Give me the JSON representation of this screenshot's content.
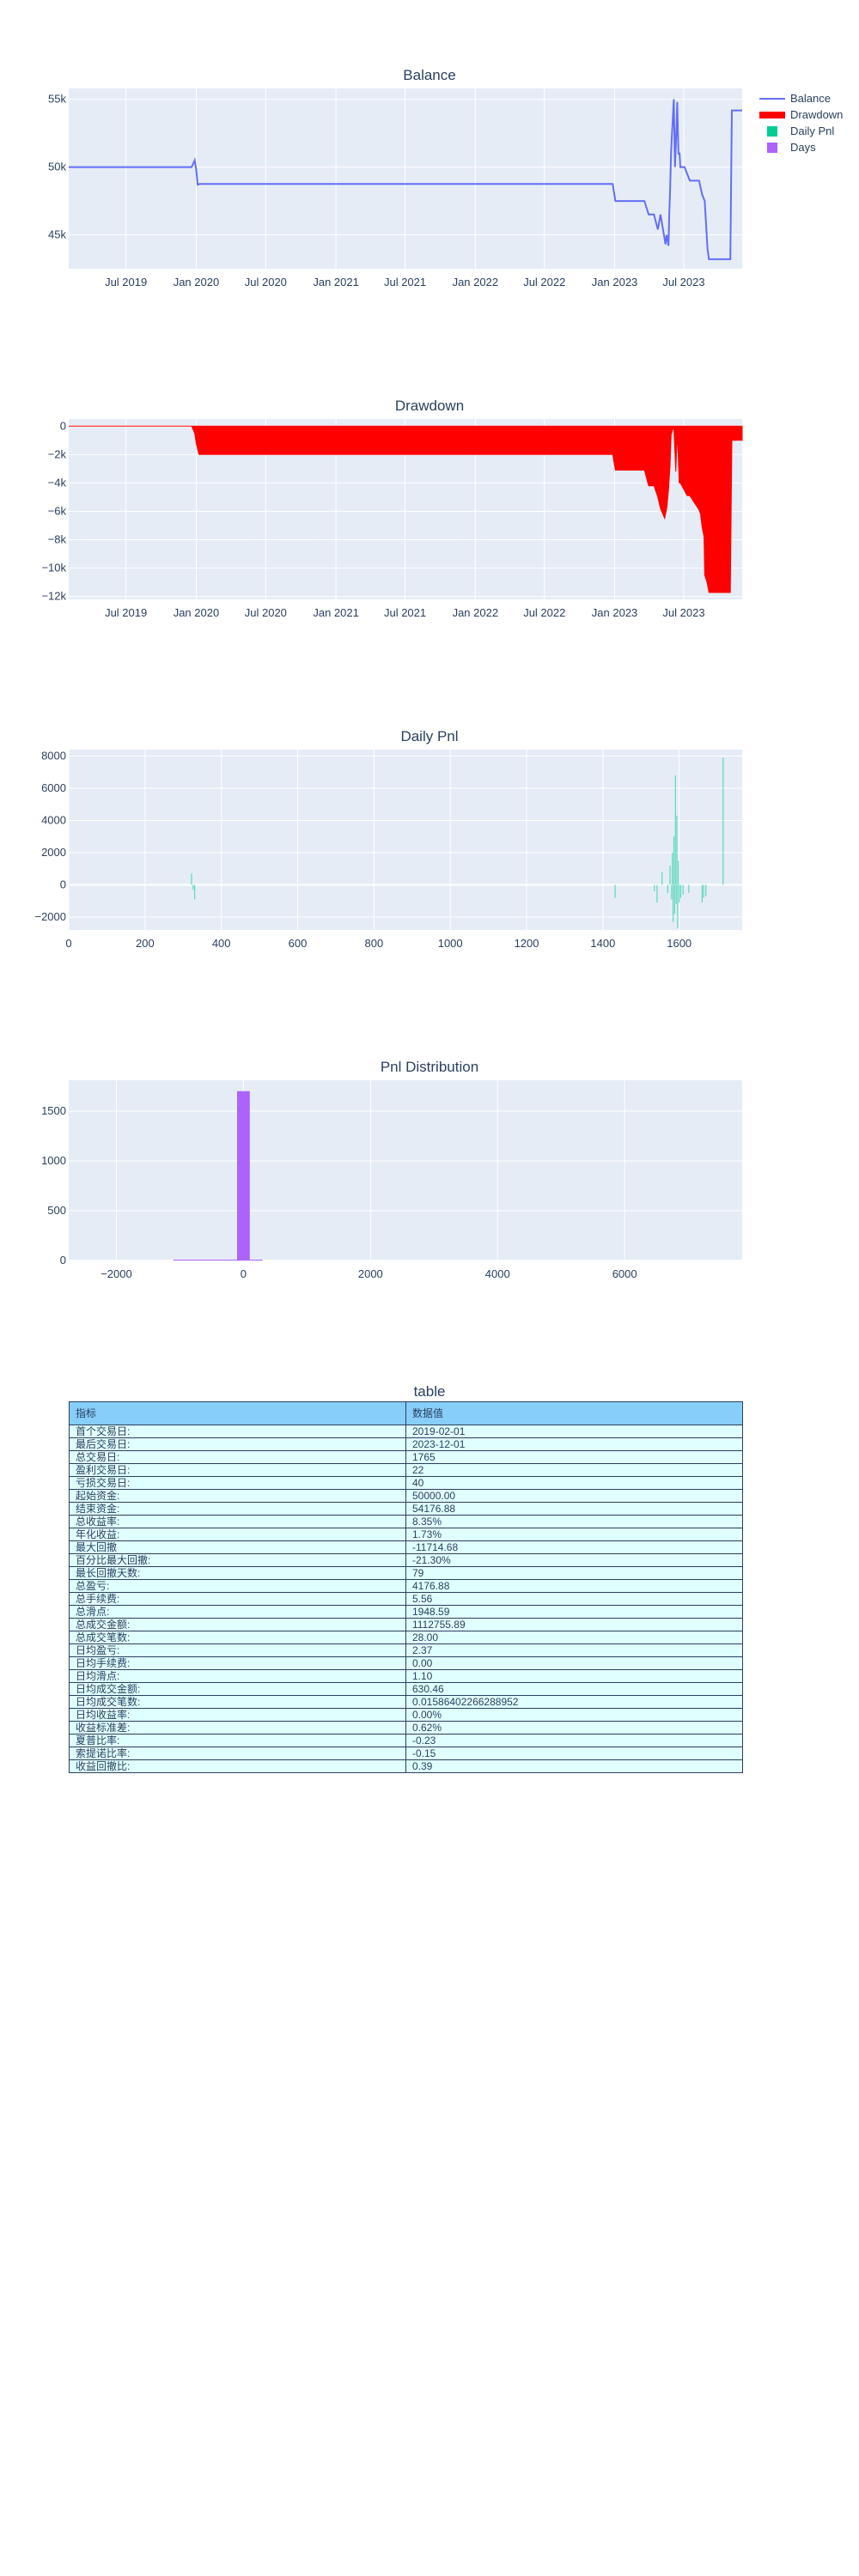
{
  "colors": {
    "balance": "#636efa",
    "drawdown": "#ff0000",
    "daily_pnl": "#00cc96",
    "days": "#ab63fa",
    "plot_bg": "#e5ecf6",
    "table_header": "#87cefa",
    "table_cell": "#e0ffff"
  },
  "legend": {
    "items": [
      {
        "label": "Balance",
        "color": "#636efa",
        "kind": "line"
      },
      {
        "label": "Drawdown",
        "color": "#ff0000",
        "kind": "fill"
      },
      {
        "label": "Daily Pnl",
        "color": "#00cc96",
        "kind": "square"
      },
      {
        "label": "Days",
        "color": "#ab63fa",
        "kind": "square"
      }
    ]
  },
  "chart_data": [
    {
      "type": "line",
      "title": "Balance",
      "series_name": "Balance",
      "x": [
        "2019-02-01",
        "2019-12-20",
        "2019-12-28",
        "2020-01-01",
        "2020-01-05",
        "2020-01-10",
        "2022-12-27",
        "2023-01-03",
        "2023-03-20",
        "2023-03-31",
        "2023-04-14",
        "2023-04-24",
        "2023-05-01",
        "2023-05-10",
        "2023-05-14",
        "2023-05-17",
        "2023-05-22",
        "2023-05-24",
        "2023-05-26",
        "2023-05-29",
        "2023-06-05",
        "2023-06-08",
        "2023-06-12",
        "2023-06-14",
        "2023-06-17",
        "2023-06-20",
        "2023-06-22",
        "2023-07-03",
        "2023-07-17",
        "2023-08-10",
        "2023-08-18",
        "2023-08-25",
        "2023-09-01",
        "2023-09-05",
        "2023-09-10",
        "2023-10-31",
        "2023-11-04",
        "2023-12-01"
      ],
      "y": [
        50000,
        50000,
        50500,
        49800,
        48700,
        48750,
        48750,
        47500,
        47500,
        46500,
        46500,
        45400,
        46500,
        45000,
        44300,
        45000,
        44200,
        46500,
        48100,
        51200,
        55000,
        50000,
        53000,
        54800,
        51000,
        51000,
        50000,
        50000,
        49000,
        49000,
        48000,
        47500,
        44000,
        43200,
        43200,
        43200,
        54177,
        54177
      ],
      "ylim": [
        42500,
        55800
      ],
      "xticks": [
        "Jul 2019",
        "Jan 2020",
        "Jul 2020",
        "Jan 2021",
        "Jul 2021",
        "Jan 2022",
        "Jul 2022",
        "Jan 2023",
        "Jul 2023"
      ],
      "yticks": [
        {
          "value": 45000,
          "label": "45k"
        },
        {
          "value": 50000,
          "label": "50k"
        },
        {
          "value": 55000,
          "label": "55k"
        }
      ],
      "grid": true
    },
    {
      "type": "area",
      "title": "Drawdown",
      "series_name": "Drawdown",
      "x": [
        "2019-02-01",
        "2019-12-20",
        "2019-12-28",
        "2020-01-01",
        "2020-01-08",
        "2022-12-27",
        "2023-01-03",
        "2023-03-20",
        "2023-03-31",
        "2023-04-14",
        "2023-04-24",
        "2023-05-01",
        "2023-05-12",
        "2023-05-18",
        "2023-05-22",
        "2023-05-26",
        "2023-05-29",
        "2023-06-05",
        "2023-06-10",
        "2023-06-14",
        "2023-06-17",
        "2023-06-19",
        "2023-06-22",
        "2023-07-10",
        "2023-07-17",
        "2023-08-10",
        "2023-08-14",
        "2023-08-18",
        "2023-08-23",
        "2023-08-25",
        "2023-08-31",
        "2023-09-05",
        "2023-10-31",
        "2023-11-04",
        "2023-12-01"
      ],
      "y": [
        0,
        0,
        -500,
        -1200,
        -2000,
        -2000,
        -3100,
        -3100,
        -4200,
        -4200,
        -5000,
        -5800,
        -6500,
        -5700,
        -4500,
        -2800,
        -600,
        0,
        -3200,
        -500,
        -2400,
        -4000,
        -4000,
        -4900,
        -4900,
        -5900,
        -6200,
        -7100,
        -7800,
        -10500,
        -11000,
        -11715,
        -11715,
        -1000,
        -1000
      ],
      "ylim": [
        -12200,
        500
      ],
      "xticks": [
        "Jul 2019",
        "Jan 2020",
        "Jul 2020",
        "Jan 2021",
        "Jul 2021",
        "Jan 2022",
        "Jul 2022",
        "Jan 2023",
        "Jul 2023"
      ],
      "yticks": [
        {
          "value": 0,
          "label": "0"
        },
        {
          "value": -2000,
          "label": "−2k"
        },
        {
          "value": -4000,
          "label": "−4k"
        },
        {
          "value": -6000,
          "label": "−6k"
        },
        {
          "value": -8000,
          "label": "−8k"
        },
        {
          "value": -10000,
          "label": "−10k"
        },
        {
          "value": -12000,
          "label": "−12k"
        }
      ],
      "grid": true
    },
    {
      "type": "bar",
      "title": "Daily Pnl",
      "series_name": "Daily Pnl",
      "x": [
        322,
        326,
        330,
        1432,
        1535,
        1542,
        1555,
        1570,
        1576,
        1580,
        1582,
        1584,
        1586,
        1588,
        1590,
        1592,
        1594,
        1596,
        1598,
        1600,
        1604,
        1610,
        1625,
        1660,
        1664,
        1670,
        1715
      ],
      "y": [
        700,
        -300,
        -900,
        -800,
        -400,
        -1100,
        800,
        -500,
        1200,
        -900,
        2000,
        -2300,
        3000,
        -1800,
        6800,
        -1200,
        4300,
        -2700,
        1500,
        -1100,
        -800,
        -600,
        -500,
        -1100,
        -800,
        -700,
        7900
      ],
      "xlim": [
        0,
        1765
      ],
      "ylim": [
        -2800,
        8400
      ],
      "xticks": [
        {
          "value": 0,
          "label": "0"
        },
        {
          "value": 200,
          "label": "200"
        },
        {
          "value": 400,
          "label": "400"
        },
        {
          "value": 600,
          "label": "600"
        },
        {
          "value": 800,
          "label": "800"
        },
        {
          "value": 1000,
          "label": "1000"
        },
        {
          "value": 1200,
          "label": "1200"
        },
        {
          "value": 1400,
          "label": "1400"
        },
        {
          "value": 1600,
          "label": "1600"
        }
      ],
      "yticks": [
        {
          "value": -2000,
          "label": "−2000"
        },
        {
          "value": 0,
          "label": "0"
        },
        {
          "value": 2000,
          "label": "2000"
        },
        {
          "value": 4000,
          "label": "4000"
        },
        {
          "value": 6000,
          "label": "6000"
        },
        {
          "value": 8000,
          "label": "8000"
        }
      ],
      "grid": true
    },
    {
      "type": "bar",
      "title": "Pnl Distribution",
      "series_name": "Days",
      "bins": [
        {
          "start": -1100,
          "end": -900,
          "count": 4
        },
        {
          "start": -900,
          "end": -700,
          "count": 3
        },
        {
          "start": -700,
          "end": -500,
          "count": 4
        },
        {
          "start": -500,
          "end": -300,
          "count": 3
        },
        {
          "start": -300,
          "end": -100,
          "count": 5
        },
        {
          "start": -100,
          "end": 100,
          "count": 1700
        },
        {
          "start": 100,
          "end": 300,
          "count": 4
        }
      ],
      "xlim": [
        -2750,
        7850
      ],
      "ylim": [
        0,
        1810
      ],
      "xticks": [
        {
          "value": -2000,
          "label": "−2000"
        },
        {
          "value": 0,
          "label": "0"
        },
        {
          "value": 2000,
          "label": "2000"
        },
        {
          "value": 4000,
          "label": "4000"
        },
        {
          "value": 6000,
          "label": "6000"
        }
      ],
      "yticks": [
        {
          "value": 0,
          "label": "0"
        },
        {
          "value": 500,
          "label": "500"
        },
        {
          "value": 1000,
          "label": "1000"
        },
        {
          "value": 1500,
          "label": "1500"
        }
      ],
      "grid": true
    },
    {
      "type": "table",
      "title": "table",
      "columns": [
        "指标",
        "数据值"
      ],
      "rows": [
        [
          "首个交易日:",
          "2019-02-01"
        ],
        [
          "最后交易日:",
          "2023-12-01"
        ],
        [
          "总交易日:",
          "1765"
        ],
        [
          "盈利交易日:",
          "22"
        ],
        [
          "亏损交易日:",
          "40"
        ],
        [
          "起始资金:",
          "50000.00"
        ],
        [
          "结束资金:",
          "54176.88"
        ],
        [
          "总收益率:",
          "8.35%"
        ],
        [
          "年化收益:",
          "1.73%"
        ],
        [
          "最大回撤",
          "-11714.68"
        ],
        [
          "百分比最大回撤:",
          "-21.30%"
        ],
        [
          "最长回撤天数:",
          "79"
        ],
        [
          "总盈亏:",
          "4176.88"
        ],
        [
          "总手续费:",
          "5.56"
        ],
        [
          "总滑点:",
          "1948.59"
        ],
        [
          "总成交金额:",
          "1112755.89"
        ],
        [
          "总成交笔数:",
          "28.00"
        ],
        [
          "日均盈亏:",
          "2.37"
        ],
        [
          "日均手续费:",
          "0.00"
        ],
        [
          "日均滑点:",
          "1.10"
        ],
        [
          "日均成交金额:",
          "630.46"
        ],
        [
          "日均成交笔数:",
          "0.015864022662889​52"
        ],
        [
          "日均收益率:",
          "0.00%"
        ],
        [
          "收益标准差:",
          "0.62%"
        ],
        [
          "夏普比率:",
          "-0.23"
        ],
        [
          "索提诺比率:",
          "-0.15"
        ],
        [
          "收益回撤比:",
          "0.39"
        ]
      ]
    }
  ]
}
